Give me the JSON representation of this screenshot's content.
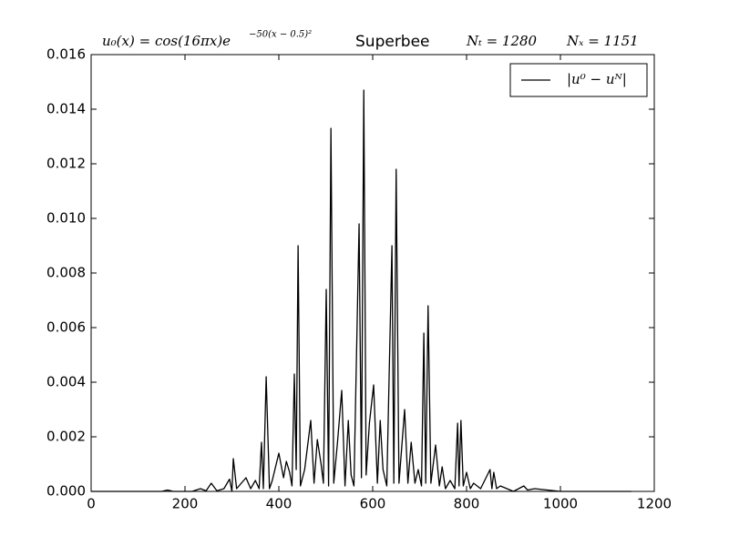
{
  "chart_data": {
    "type": "line",
    "title": {
      "formula": "u₀(x) = cos(16πx)e",
      "exponent": "−50(x − 0.5)²",
      "scheme": "Superbee",
      "nt": "Nₜ = 1280",
      "nx": "Nₓ = 1151"
    },
    "x": [
      0,
      150,
      163,
      175,
      215,
      233,
      245,
      256,
      268,
      283,
      295,
      300,
      303,
      310,
      330,
      340,
      350,
      358,
      363,
      367,
      373,
      380,
      386,
      400,
      410,
      416,
      423,
      428,
      433,
      437,
      441,
      446,
      455,
      468,
      475,
      482,
      490,
      495,
      501,
      506,
      511,
      517,
      525,
      534,
      541,
      548,
      554,
      560,
      571,
      576,
      581,
      586,
      593,
      602,
      610,
      616,
      622,
      630,
      641,
      645,
      650,
      656,
      668,
      675,
      682,
      690,
      697,
      704,
      709,
      713,
      718,
      724,
      734,
      742,
      748,
      755,
      765,
      775,
      781,
      784,
      788,
      793,
      800,
      808,
      815,
      830,
      850,
      854,
      858,
      864,
      872,
      900,
      922,
      930,
      945,
      1000,
      1151
    ],
    "series": [
      {
        "name": "|u⁰ − uᴺ|",
        "color": "#000000",
        "values": [
          0,
          0,
          5e-05,
          0,
          0,
          0.0001,
          2e-05,
          0.0003,
          2e-05,
          0.0001,
          0.00045,
          0,
          0.0012,
          0.0001,
          0.0005,
          0.0001,
          0.0004,
          0.0001,
          0.0018,
          0.0001,
          0.0042,
          0.0001,
          0.0004,
          0.0014,
          0.0005,
          0.0011,
          0.0007,
          0.0002,
          0.0043,
          0.0008,
          0.009,
          0.0002,
          0.0008,
          0.0026,
          0.0003,
          0.0019,
          0.001,
          0.0003,
          0.0074,
          0.0002,
          0.0133,
          0.0003,
          0.0018,
          0.0037,
          0.0002,
          0.0026,
          0.0006,
          0.0002,
          0.0098,
          0.0005,
          0.0147,
          0.0006,
          0.0025,
          0.0039,
          0.0003,
          0.0026,
          0.0008,
          0.0002,
          0.009,
          0.0003,
          0.0118,
          0.0003,
          0.003,
          0.0003,
          0.0018,
          0.0003,
          0.0008,
          0.0002,
          0.0058,
          0.0003,
          0.0068,
          0.0003,
          0.0017,
          0.0002,
          0.0009,
          0.0001,
          0.0004,
          0.0001,
          0.0025,
          0.0002,
          0.0026,
          0.0002,
          0.0007,
          0.0001,
          0.0003,
          0.0001,
          0.0008,
          0.0001,
          0.0007,
          0.0001,
          0.0002,
          0,
          0.0002,
          5e-05,
          0.0001,
          0,
          0
        ]
      }
    ],
    "xlim": [
      0,
      1200
    ],
    "xticks": [
      0,
      200,
      400,
      600,
      800,
      1000,
      1200
    ],
    "ylim": [
      0,
      0.016
    ],
    "yticks": [
      {
        "value": 0,
        "label": "0.000"
      },
      {
        "value": 0.002,
        "label": "0.002"
      },
      {
        "value": 0.004,
        "label": "0.004"
      },
      {
        "value": 0.006,
        "label": "0.006"
      },
      {
        "value": 0.008,
        "label": "0.008"
      },
      {
        "value": 0.01,
        "label": "0.010"
      },
      {
        "value": 0.012,
        "label": "0.012"
      },
      {
        "value": 0.014,
        "label": "0.014"
      },
      {
        "value": 0.016,
        "label": "0.016"
      }
    ],
    "legend": "upper right",
    "grid": false
  }
}
